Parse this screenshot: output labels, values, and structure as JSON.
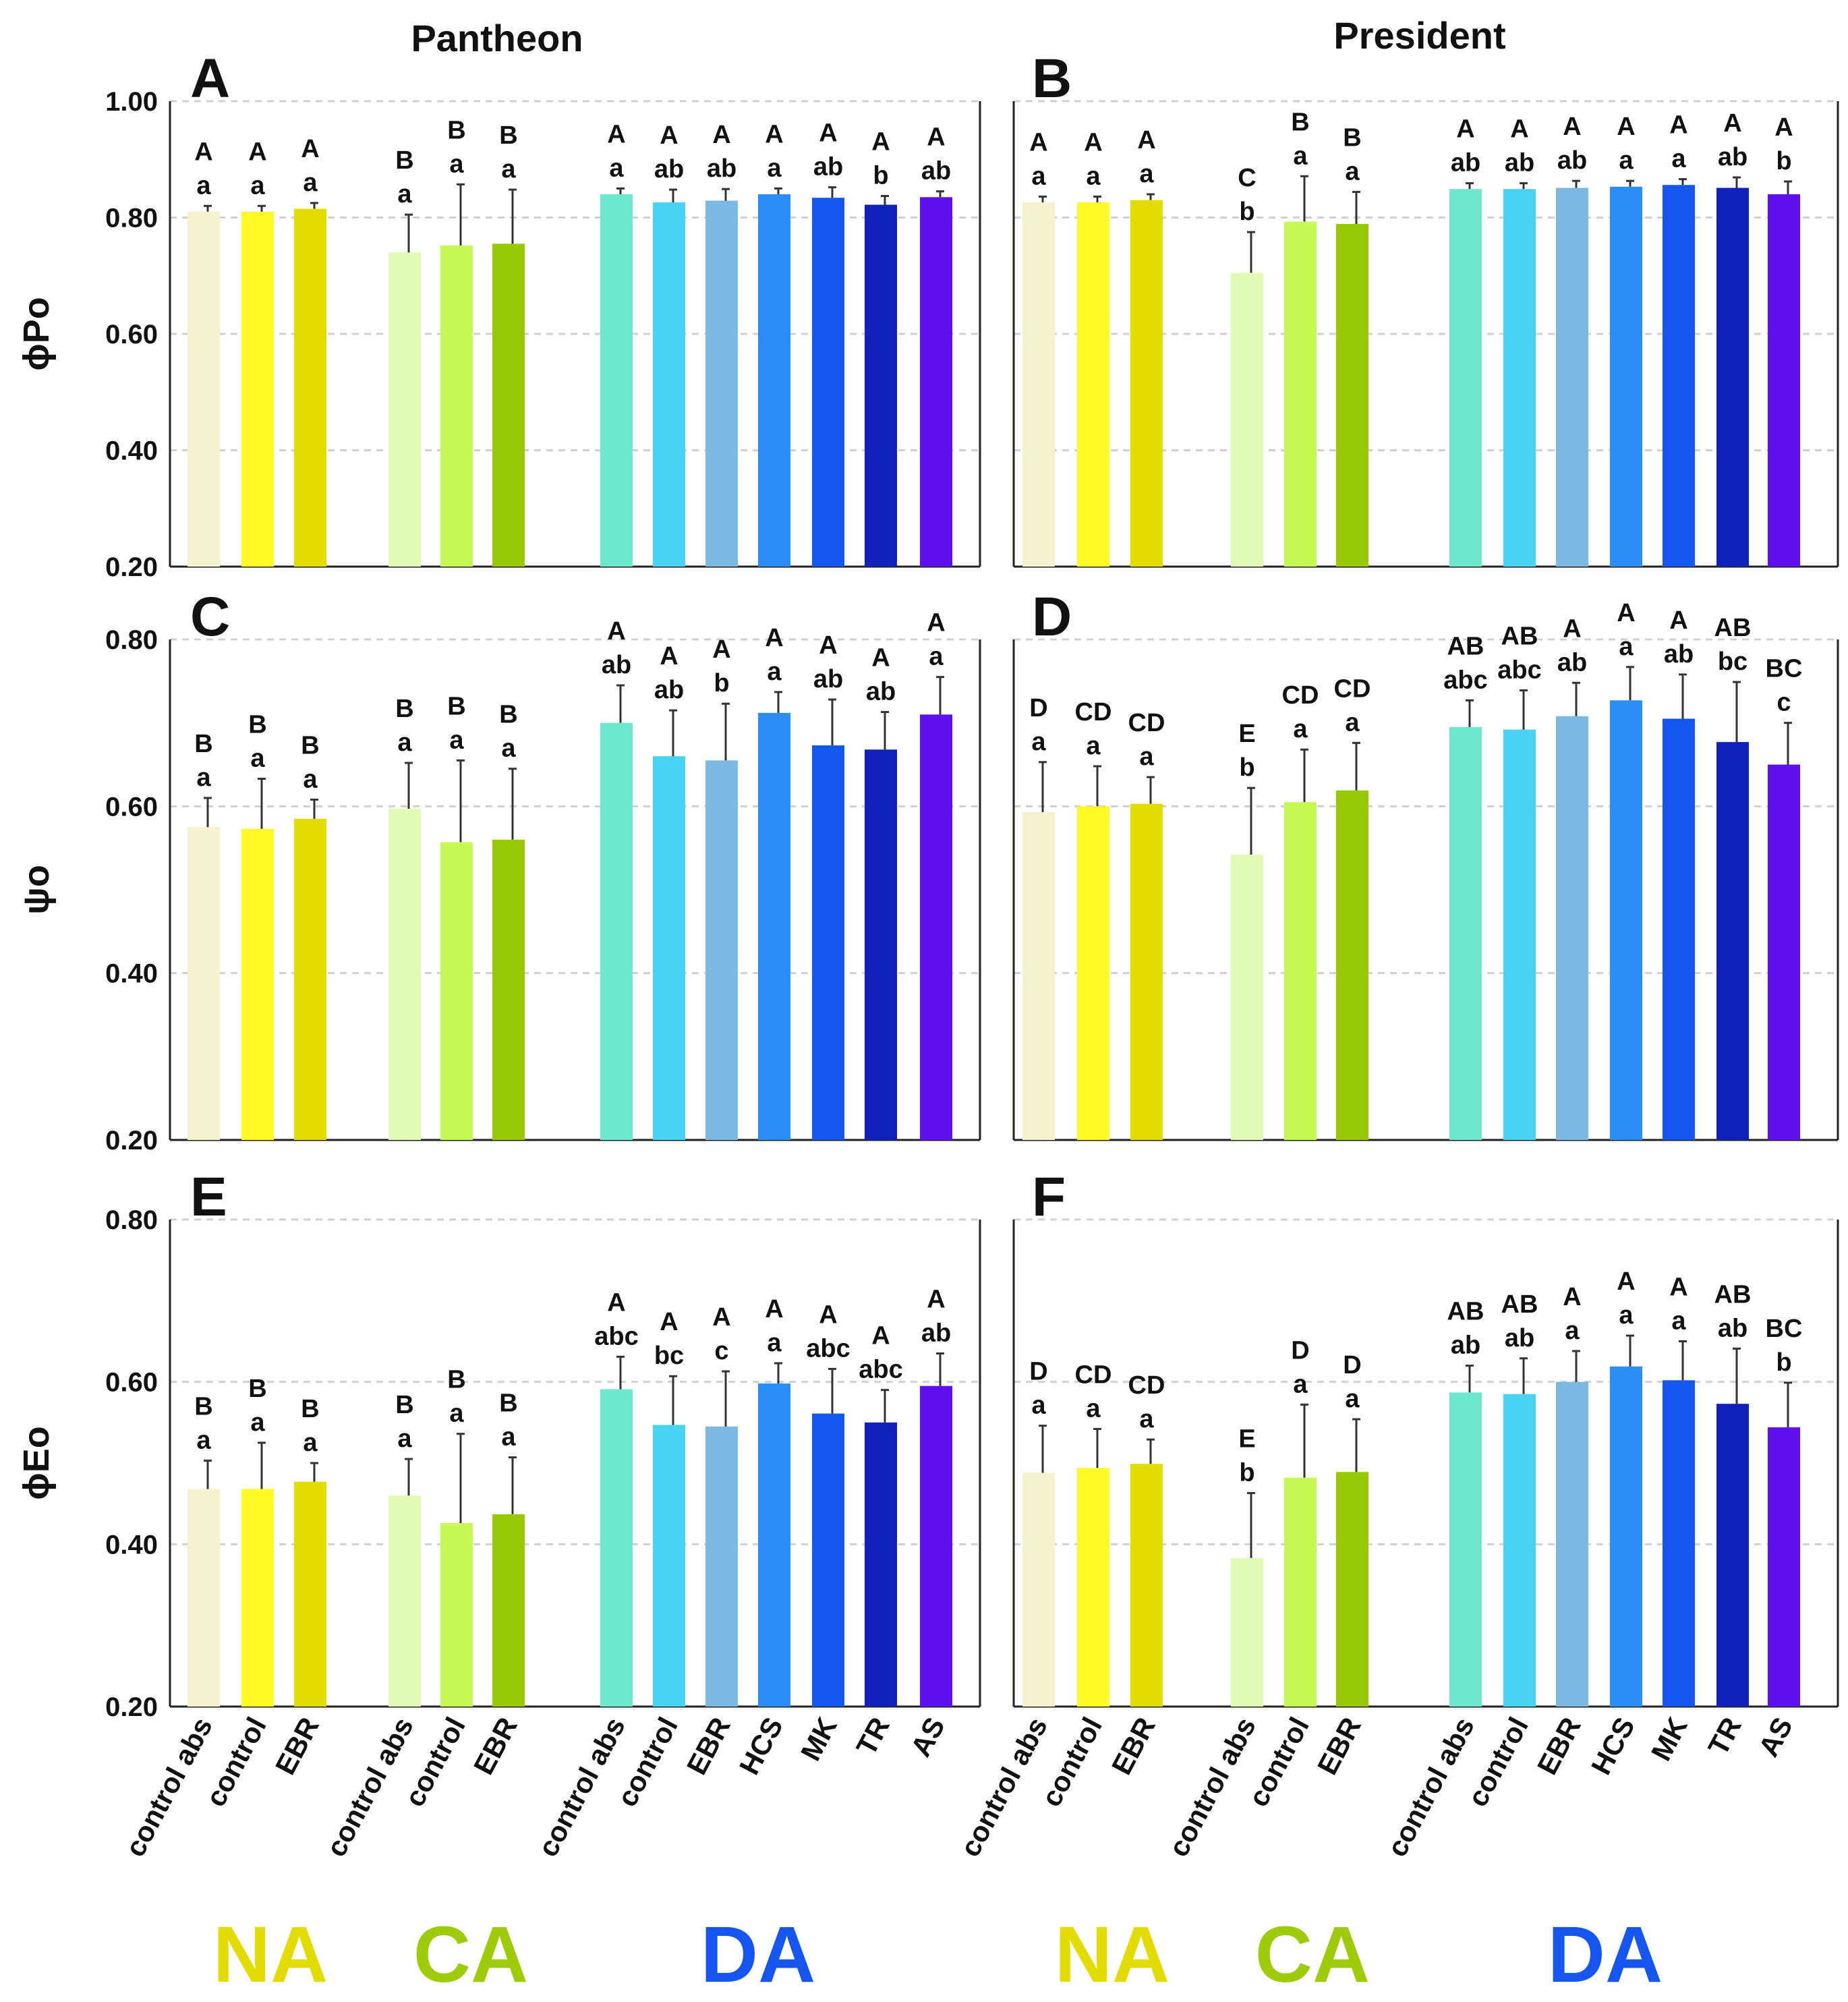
{
  "figure": {
    "col_titles": [
      "Pantheon",
      "President"
    ],
    "x_categories": [
      "control abs",
      "control",
      "EBR",
      "control abs",
      "control",
      "EBR",
      "control abs",
      "control",
      "EBR",
      "HCS",
      "MK",
      "TR",
      "AS"
    ],
    "groups": [
      {
        "name": "NA",
        "color": "#e2dc00"
      },
      {
        "name": "CA",
        "color": "#9ecb0a"
      },
      {
        "name": "DA",
        "color": "#1556f0"
      }
    ],
    "bar_colors": [
      "#f5f3cf",
      "#fff926",
      "#e2dc00",
      "#e1fbb6",
      "#c6f954",
      "#97c907",
      "#6ee8cc",
      "#48d2f4",
      "#7cb8e4",
      "#2b8ef6",
      "#1556f0",
      "#0f20bb",
      "#5f10ee"
    ]
  },
  "chart_data": [
    {
      "id": "A",
      "type": "bar",
      "title": "Pantheon",
      "ylabel": "ϕPo",
      "ylim": [
        0.2,
        1.0
      ],
      "yticks": [
        "0.20",
        "0.40",
        "0.60",
        "0.80",
        "1.00"
      ],
      "values": [
        0.81,
        0.81,
        0.815,
        0.74,
        0.752,
        0.755,
        0.84,
        0.826,
        0.829,
        0.84,
        0.834,
        0.822,
        0.835
      ],
      "errors": [
        0.01,
        0.01,
        0.01,
        0.065,
        0.105,
        0.093,
        0.01,
        0.022,
        0.02,
        0.01,
        0.018,
        0.015,
        0.01
      ],
      "upper_letters": [
        "A",
        "A",
        "A",
        "B",
        "B",
        "B",
        "A",
        "A",
        "A",
        "A",
        "A",
        "A",
        "A"
      ],
      "lower_letters": [
        "a",
        "a",
        "a",
        "a",
        "a",
        "a",
        "a",
        "ab",
        "ab",
        "a",
        "ab",
        "b",
        "ab"
      ]
    },
    {
      "id": "B",
      "type": "bar",
      "title": "President",
      "ylabel": "",
      "ylim": [
        0.2,
        1.0
      ],
      "yticks": [],
      "values": [
        0.826,
        0.826,
        0.83,
        0.705,
        0.793,
        0.789,
        0.849,
        0.849,
        0.851,
        0.853,
        0.856,
        0.851,
        0.84
      ],
      "errors": [
        0.01,
        0.01,
        0.01,
        0.07,
        0.078,
        0.055,
        0.01,
        0.01,
        0.012,
        0.01,
        0.01,
        0.018,
        0.022
      ],
      "upper_letters": [
        "A",
        "A",
        "A",
        "C",
        "B",
        "B",
        "A",
        "A",
        "A",
        "A",
        "A",
        "A",
        "A"
      ],
      "lower_letters": [
        "a",
        "a",
        "a",
        "b",
        "a",
        "a",
        "ab",
        "ab",
        "ab",
        "a",
        "a",
        "ab",
        "b"
      ]
    },
    {
      "id": "C",
      "type": "bar",
      "ylabel": "ψo",
      "ylim": [
        0.2,
        0.8
      ],
      "yticks": [
        "0.20",
        "0.40",
        "0.60",
        "0.80"
      ],
      "values": [
        0.575,
        0.573,
        0.585,
        0.597,
        0.557,
        0.56,
        0.7,
        0.66,
        0.655,
        0.712,
        0.673,
        0.668,
        0.71
      ],
      "errors": [
        0.035,
        0.06,
        0.023,
        0.055,
        0.098,
        0.085,
        0.045,
        0.055,
        0.068,
        0.025,
        0.055,
        0.045,
        0.045
      ],
      "upper_letters": [
        "B",
        "B",
        "B",
        "B",
        "B",
        "B",
        "A",
        "A",
        "A",
        "A",
        "A",
        "A",
        "A"
      ],
      "lower_letters": [
        "a",
        "a",
        "a",
        "a",
        "a",
        "a",
        "ab",
        "ab",
        "b",
        "a",
        "ab",
        "ab",
        "a"
      ]
    },
    {
      "id": "D",
      "type": "bar",
      "ylabel": "",
      "ylim": [
        0.2,
        0.8
      ],
      "yticks": [],
      "values": [
        0.593,
        0.6,
        0.603,
        0.542,
        0.605,
        0.619,
        0.695,
        0.692,
        0.708,
        0.727,
        0.705,
        0.677,
        0.65
      ],
      "errors": [
        0.06,
        0.048,
        0.032,
        0.08,
        0.063,
        0.057,
        0.032,
        0.047,
        0.04,
        0.04,
        0.053,
        0.072,
        0.05
      ],
      "upper_letters": [
        "D",
        "CD",
        "CD",
        "E",
        "CD",
        "CD",
        "AB",
        "AB",
        "A",
        "A",
        "A",
        "AB",
        "BC"
      ],
      "lower_letters": [
        "a",
        "a",
        "a",
        "b",
        "a",
        "a",
        "abc",
        "abc",
        "ab",
        "a",
        "ab",
        "bc",
        "c"
      ]
    },
    {
      "id": "E",
      "type": "bar",
      "ylabel": "ϕEo",
      "ylim": [
        0.2,
        0.8
      ],
      "yticks": [
        "0.20",
        "0.40",
        "0.60",
        "0.80"
      ],
      "values": [
        0.468,
        0.468,
        0.477,
        0.46,
        0.426,
        0.437,
        0.591,
        0.547,
        0.545,
        0.598,
        0.561,
        0.55,
        0.595
      ],
      "errors": [
        0.035,
        0.057,
        0.023,
        0.045,
        0.11,
        0.07,
        0.04,
        0.06,
        0.068,
        0.025,
        0.055,
        0.04,
        0.04
      ],
      "upper_letters": [
        "B",
        "B",
        "B",
        "B",
        "B",
        "B",
        "A",
        "A",
        "A",
        "A",
        "A",
        "A",
        "A"
      ],
      "lower_letters": [
        "a",
        "a",
        "a",
        "a",
        "a",
        "a",
        "abc",
        "bc",
        "c",
        "a",
        "abc",
        "abc",
        "ab"
      ]
    },
    {
      "id": "F",
      "type": "bar",
      "ylabel": "",
      "ylim": [
        0.2,
        0.8
      ],
      "yticks": [],
      "values": [
        0.488,
        0.494,
        0.499,
        0.383,
        0.482,
        0.489,
        0.587,
        0.585,
        0.6,
        0.619,
        0.602,
        0.573,
        0.544
      ],
      "errors": [
        0.058,
        0.048,
        0.03,
        0.08,
        0.09,
        0.065,
        0.033,
        0.044,
        0.038,
        0.038,
        0.048,
        0.068,
        0.055
      ],
      "upper_letters": [
        "D",
        "CD",
        "CD",
        "E",
        "D",
        "D",
        "AB",
        "AB",
        "A",
        "A",
        "A",
        "AB",
        "BC"
      ],
      "lower_letters": [
        "a",
        "a",
        "a",
        "b",
        "a",
        "a",
        "ab",
        "ab",
        "a",
        "a",
        "a",
        "ab",
        "b"
      ]
    }
  ]
}
